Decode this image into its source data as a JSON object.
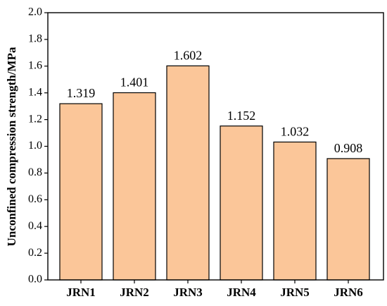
{
  "chart_data": {
    "type": "bar",
    "y_label": "Unconfined compression strength/MPa",
    "categories": [
      "JRN1",
      "JRN2",
      "JRN3",
      "JRN4",
      "JRN5",
      "JRN6"
    ],
    "values": [
      1.319,
      1.401,
      1.602,
      1.152,
      1.032,
      0.908
    ],
    "color": "#fbc699",
    "ylim": [
      0,
      2
    ],
    "yticks": [
      {
        "value": 0,
        "label": "0.0"
      },
      {
        "value": 0.2,
        "label": "0.2"
      },
      {
        "value": 0.4,
        "label": "0.4"
      },
      {
        "value": 0.6,
        "label": "0.6"
      },
      {
        "value": 0.8,
        "label": "0.8"
      },
      {
        "value": 1,
        "label": "1.0"
      },
      {
        "value": 1.2,
        "label": "1.2"
      },
      {
        "value": 1.4,
        "label": "1.4"
      },
      {
        "value": 1.6,
        "label": "1.6"
      },
      {
        "value": 1.8,
        "label": "1.8"
      },
      {
        "value": 2,
        "label": "2.0"
      }
    ]
  }
}
